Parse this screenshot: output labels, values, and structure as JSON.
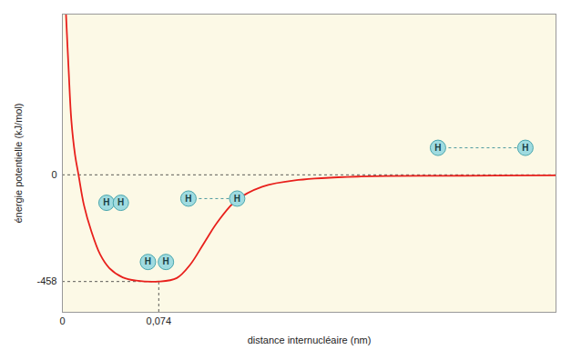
{
  "chart_data": {
    "type": "line",
    "xlabel": "distance internucléaire (nm)",
    "ylabel": "énergie potentielle (kJ/mol)",
    "color": "#e8201c",
    "x": [
      0.0028,
      0.0048,
      0.0069,
      0.0097,
      0.0124,
      0.0166,
      0.0221,
      0.029,
      0.036,
      0.0463,
      0.0567,
      0.074,
      0.0878,
      0.0982,
      0.1086,
      0.119,
      0.1328,
      0.1535,
      0.1812,
      0.2296,
      0.2988,
      0.379
    ],
    "values": [
      687,
      451,
      233,
      87,
      0,
      -131,
      -240,
      -342,
      -400,
      -440,
      -454,
      -458,
      -443,
      -385,
      -294,
      -204,
      -113,
      -51,
      -22,
      -7,
      -4,
      -2
    ],
    "xlim": [
      0,
      0.379
    ],
    "ylim": [
      -590,
      690
    ],
    "xticks": [
      0,
      {
        "value": 0.074,
        "label": "0,074"
      }
    ],
    "yticks": [
      0,
      {
        "value": -458,
        "label": "-458"
      }
    ],
    "annotations": [
      {
        "label": "H",
        "x": [
          0.0339,
          0.0449
        ],
        "y": -120
      },
      {
        "label": "H",
        "x": [
          0.0657,
          0.0795
        ],
        "y": -374
      },
      {
        "label": "H",
        "x": [
          0.0968,
          0.1342
        ],
        "y": -102
      },
      {
        "label": "H",
        "x": [
          0.2884,
          0.3555
        ],
        "y": 116
      }
    ]
  }
}
